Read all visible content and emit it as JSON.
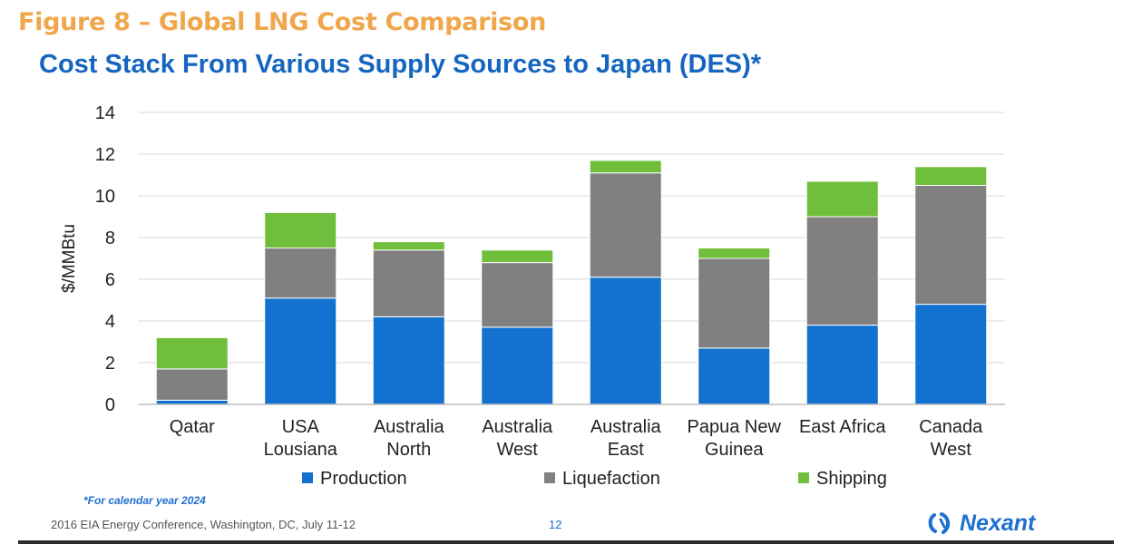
{
  "header": {
    "figure_title": "Figure 8 – Global LNG Cost Comparison",
    "chart_title": "Cost Stack From Various Supply Sources to Japan (DES)*"
  },
  "chart_data": {
    "type": "bar",
    "stacked": true,
    "categories": [
      [
        "Qatar"
      ],
      [
        "USA",
        "Lousiana"
      ],
      [
        "Australia",
        "North"
      ],
      [
        "Australia",
        "West"
      ],
      [
        "Australia",
        "East"
      ],
      [
        "Papua New",
        "Guinea"
      ],
      [
        "East Africa"
      ],
      [
        "Canada",
        "West"
      ]
    ],
    "series": [
      {
        "name": "Production",
        "color": "#1372d0",
        "values": [
          0.2,
          5.1,
          4.2,
          3.7,
          6.1,
          2.7,
          3.8,
          4.8
        ]
      },
      {
        "name": "Liquefaction",
        "color": "#808080",
        "values": [
          1.5,
          2.4,
          3.2,
          3.1,
          5.0,
          4.3,
          5.2,
          5.7
        ]
      },
      {
        "name": "Shipping",
        "color": "#70bf3c",
        "values": [
          1.5,
          1.7,
          0.4,
          0.6,
          0.6,
          0.5,
          1.7,
          0.9
        ]
      }
    ],
    "ylabel": "$/MMBtu",
    "xlabel": "",
    "ylim": [
      0,
      14
    ],
    "yticks": [
      0,
      2,
      4,
      6,
      8,
      10,
      12,
      14
    ],
    "grid": true,
    "legend": "bottom"
  },
  "footnote": "*For calendar year 2024",
  "footer": {
    "conference": "2016 EIA Energy Conference, Washington, DC, July 11-12",
    "page_number": "12",
    "brand": "Nexant",
    "brand_color": "#1e6fd0"
  }
}
